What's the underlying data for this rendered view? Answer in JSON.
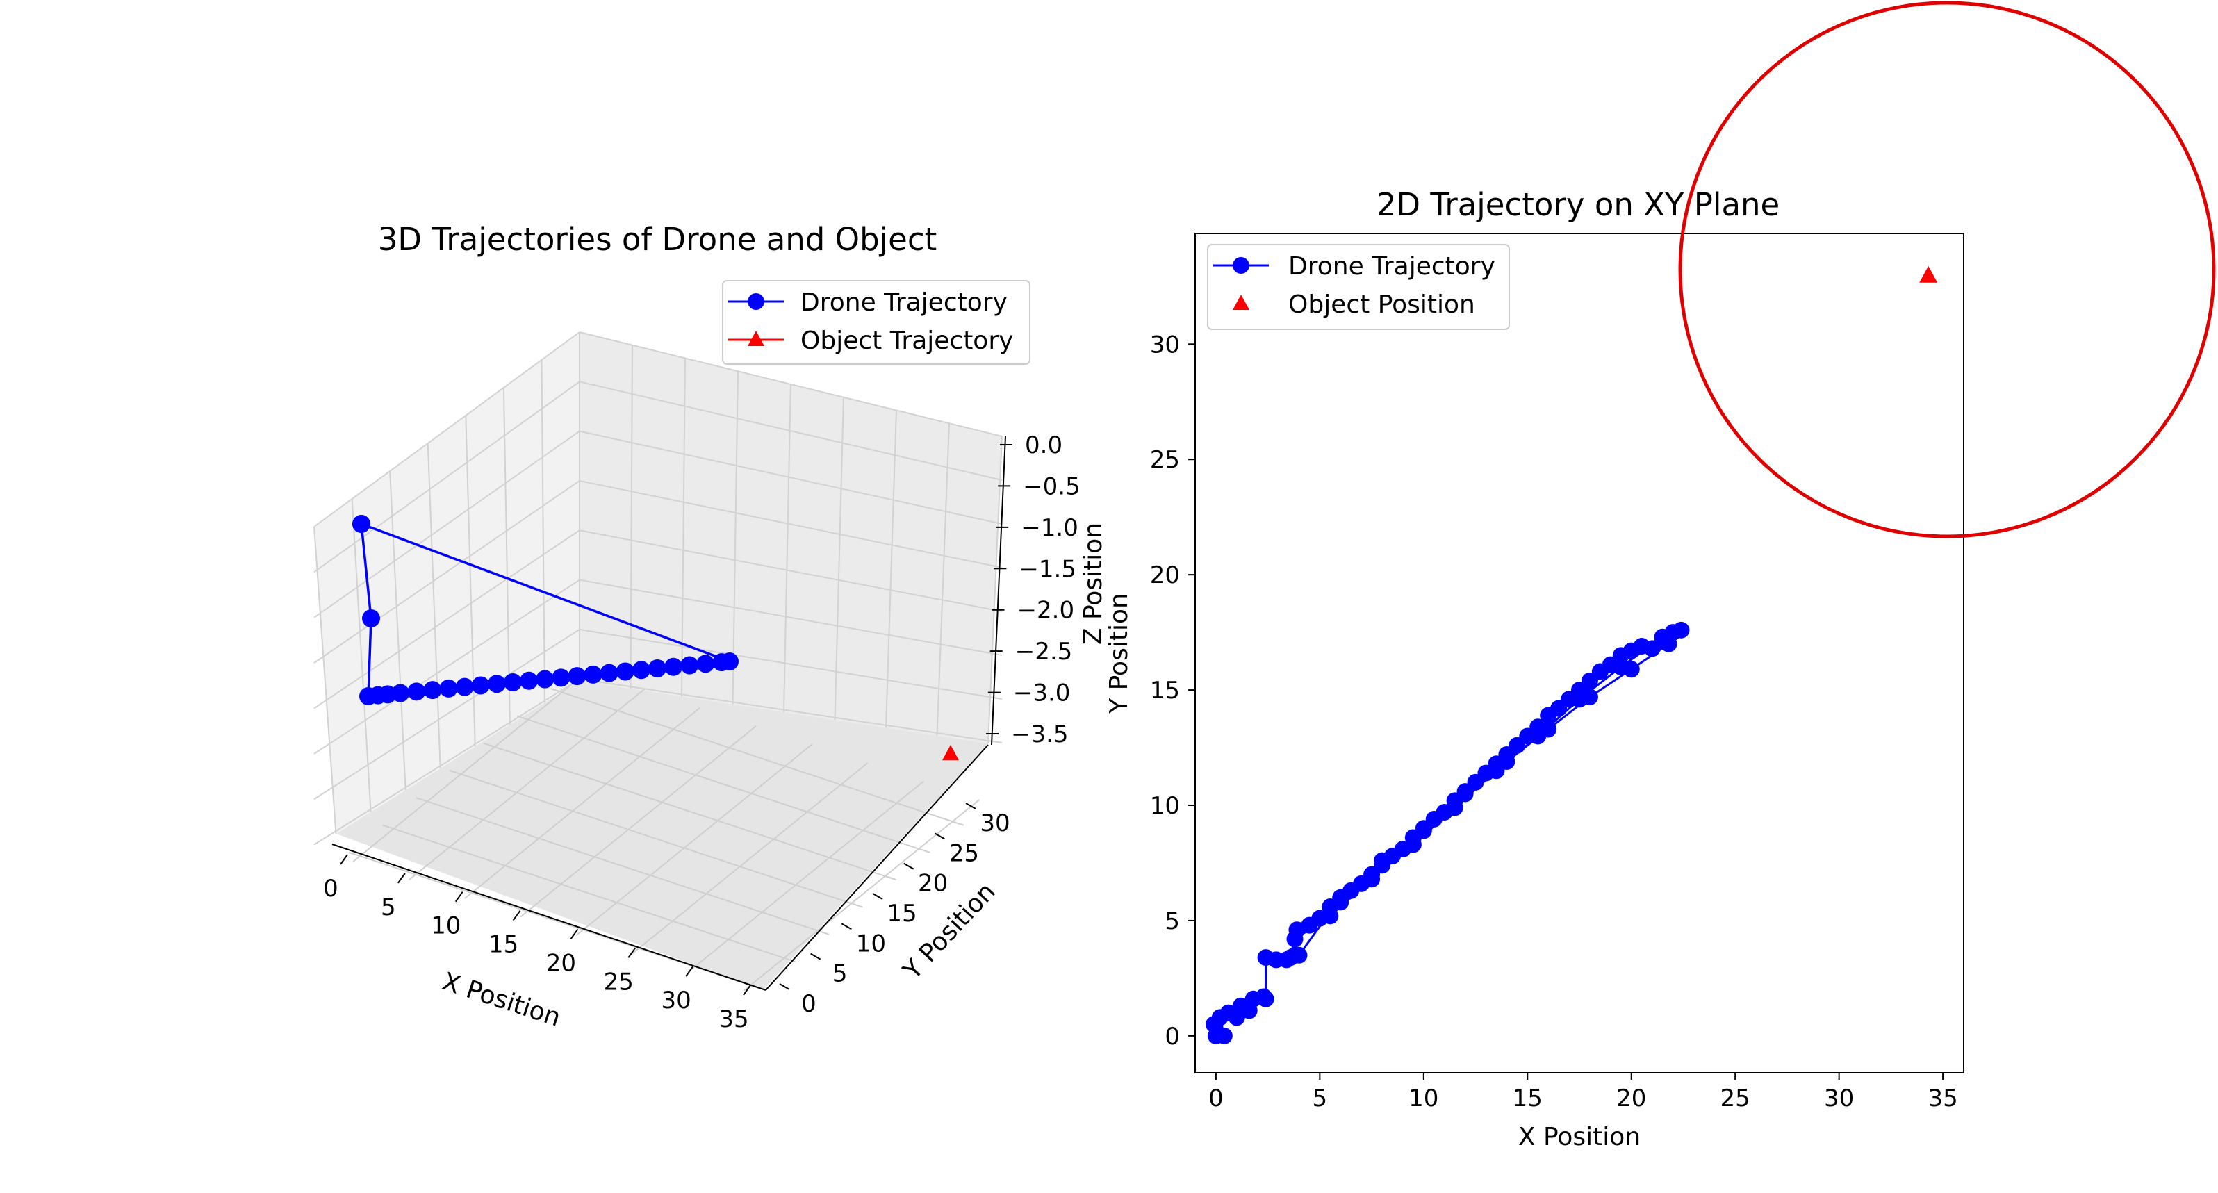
{
  "chart_data": [
    {
      "type": "line3d",
      "title": "3D Trajectories of Drone and Object",
      "xlabel": "X Position",
      "ylabel": "Y Position",
      "zlabel": "Z Position",
      "xticks": [
        "0",
        "5",
        "10",
        "15",
        "20",
        "25",
        "30",
        "35"
      ],
      "yticks": [
        "0",
        "5",
        "10",
        "15",
        "20",
        "25",
        "30"
      ],
      "zticks": [
        "0.0",
        "−0.5",
        "−1.0",
        "−1.5",
        "−2.0",
        "−2.5",
        "−3.0",
        "−3.5"
      ],
      "xlim": [
        -1,
        36
      ],
      "ylim": [
        -1,
        34
      ],
      "zlim": [
        -3.7,
        0.1
      ],
      "grid": true,
      "legend_position": "top-right",
      "series": [
        {
          "name": "Drone Trajectory",
          "color": "#0000ff",
          "marker": "circle",
          "points": [
            [
              0,
              0,
              -1.0
            ],
            [
              0,
              0,
              -2.0
            ],
            [
              0,
              0,
              -3.0
            ],
            [
              0.6,
              0.4,
              -3.0
            ],
            [
              1.2,
              0.9,
              -3.0
            ],
            [
              2.0,
              1.6,
              -3.0
            ],
            [
              3.0,
              2.4,
              -3.0
            ],
            [
              4.0,
              3.2,
              -3.0
            ],
            [
              5.0,
              4.0,
              -3.0
            ],
            [
              6.0,
              4.7,
              -3.0
            ],
            [
              7.0,
              5.5,
              -3.0
            ],
            [
              8.0,
              6.3,
              -3.0
            ],
            [
              9.0,
              7.1,
              -3.0
            ],
            [
              10.0,
              7.9,
              -3.0
            ],
            [
              11.0,
              8.6,
              -3.0
            ],
            [
              12.0,
              9.4,
              -3.0
            ],
            [
              13.0,
              10.2,
              -3.0
            ],
            [
              14.0,
              11.0,
              -3.0
            ],
            [
              15.0,
              11.8,
              -3.0
            ],
            [
              16.0,
              12.6,
              -3.0
            ],
            [
              17.0,
              13.4,
              -3.0
            ],
            [
              18.0,
              14.2,
              -3.0
            ],
            [
              19.0,
              15.0,
              -3.0
            ],
            [
              20.0,
              15.8,
              -3.0
            ],
            [
              21.0,
              16.6,
              -3.0
            ],
            [
              22.0,
              17.3,
              -3.0
            ],
            [
              22.5,
              17.7,
              -3.0
            ],
            [
              0,
              0,
              -1.0
            ]
          ]
        },
        {
          "name": "Object Trajectory",
          "color": "#ff0000",
          "marker": "triangle",
          "points": [
            [
              34.3,
              33.0,
              -3.5
            ]
          ]
        }
      ]
    },
    {
      "type": "line",
      "title": "2D Trajectory on XY Plane",
      "xlabel": "X Position",
      "ylabel": "Y Position",
      "xticks": [
        "0",
        "5",
        "10",
        "15",
        "20",
        "25",
        "30",
        "35"
      ],
      "yticks": [
        "0",
        "5",
        "10",
        "15",
        "20",
        "25",
        "30"
      ],
      "xlim": [
        -1.0,
        36.0
      ],
      "ylim": [
        -1.6,
        34.8
      ],
      "grid": false,
      "legend_position": "top-left",
      "series": [
        {
          "name": "Drone Trajectory",
          "color": "#0000ff",
          "marker": "circle",
          "points": [
            [
              -0.1,
              0.5
            ],
            [
              0.0,
              0.0
            ],
            [
              0.4,
              0.0
            ],
            [
              0.2,
              0.8
            ],
            [
              0.6,
              1.0
            ],
            [
              1.0,
              0.8
            ],
            [
              1.2,
              1.3
            ],
            [
              1.6,
              1.1
            ],
            [
              1.8,
              1.6
            ],
            [
              2.3,
              1.7
            ],
            [
              2.4,
              1.6
            ],
            [
              2.4,
              3.4
            ],
            [
              2.9,
              3.3
            ],
            [
              3.4,
              3.3
            ],
            [
              3.8,
              3.5
            ],
            [
              3.9,
              4.6
            ],
            [
              4.5,
              4.8
            ],
            [
              5.0,
              5.1
            ],
            [
              5.5,
              5.6
            ],
            [
              6.0,
              5.8
            ],
            [
              6.5,
              6.3
            ],
            [
              7.0,
              6.6
            ],
            [
              7.5,
              7.0
            ],
            [
              8.0,
              7.4
            ],
            [
              8.5,
              7.8
            ],
            [
              9.0,
              8.1
            ],
            [
              9.5,
              8.6
            ],
            [
              10.0,
              8.9
            ],
            [
              10.5,
              9.4
            ],
            [
              11.0,
              9.7
            ],
            [
              11.5,
              10.2
            ],
            [
              12.0,
              10.6
            ],
            [
              12.5,
              11.0
            ],
            [
              13.0,
              11.4
            ],
            [
              13.5,
              11.8
            ],
            [
              14.0,
              12.2
            ],
            [
              14.5,
              12.6
            ],
            [
              15.0,
              13.0
            ],
            [
              15.5,
              13.4
            ],
            [
              16.0,
              13.9
            ],
            [
              16.5,
              14.2
            ],
            [
              17.0,
              14.6
            ],
            [
              17.5,
              15.0
            ],
            [
              18.0,
              15.4
            ],
            [
              18.5,
              15.8
            ],
            [
              19.0,
              16.1
            ],
            [
              19.5,
              16.5
            ],
            [
              20.0,
              16.7
            ],
            [
              20.5,
              16.9
            ],
            [
              21.0,
              16.8
            ],
            [
              21.5,
              17.1
            ],
            [
              22.0,
              17.5
            ],
            [
              22.4,
              17.6
            ],
            [
              21.8,
              17.0
            ],
            [
              20.0,
              15.9
            ],
            [
              18.0,
              14.7
            ],
            [
              16.0,
              13.3
            ],
            [
              14.0,
              11.9
            ],
            [
              12.0,
              10.5
            ],
            [
              10.0,
              9.0
            ],
            [
              8.0,
              7.6
            ],
            [
              6.0,
              6.0
            ],
            [
              4.0,
              3.5
            ],
            [
              3.6,
              3.4
            ],
            [
              3.8,
              4.2
            ],
            [
              5.5,
              5.2
            ],
            [
              7.5,
              6.8
            ],
            [
              9.5,
              8.3
            ],
            [
              11.5,
              9.9
            ],
            [
              13.5,
              11.5
            ],
            [
              15.5,
              13.0
            ],
            [
              17.5,
              14.6
            ],
            [
              19.5,
              16.0
            ],
            [
              21.5,
              17.3
            ]
          ]
        },
        {
          "name": "Object Position",
          "color": "#ff0000",
          "marker": "triangle",
          "points": [
            [
              34.3,
              33.0
            ]
          ]
        }
      ]
    }
  ],
  "annotation": {
    "shape": "circle",
    "color": "#e00000"
  }
}
